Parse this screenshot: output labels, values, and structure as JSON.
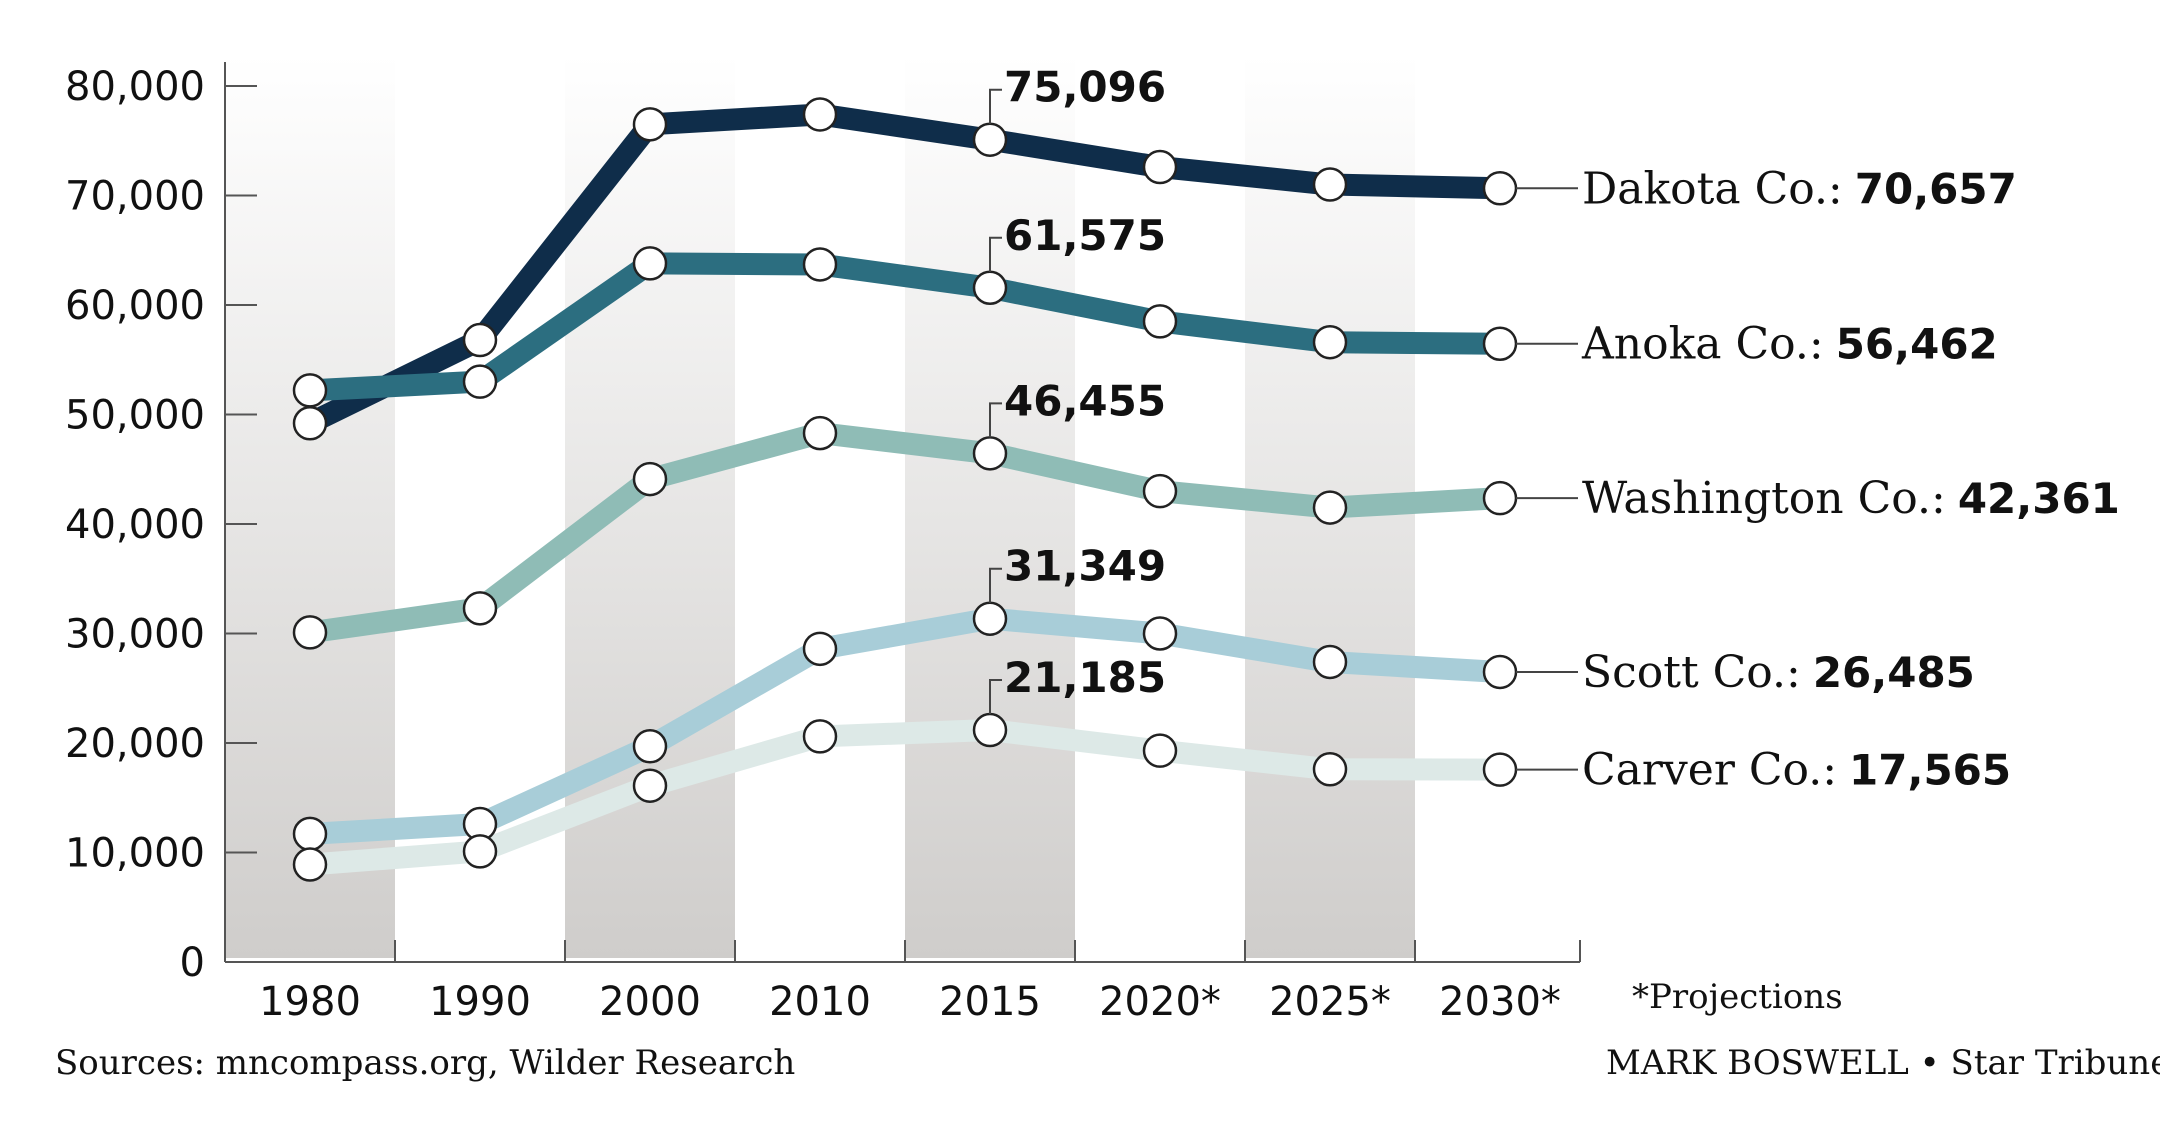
{
  "chart_data": {
    "type": "line",
    "categories": [
      "1980",
      "1990",
      "2000",
      "2010",
      "2015",
      "2020*",
      "2025*",
      "2030*"
    ],
    "ylim": [
      0,
      80000
    ],
    "yticks": [
      "0",
      "10,000",
      "20,000",
      "30,000",
      "40,000",
      "50,000",
      "60,000",
      "70,000",
      "80,000"
    ],
    "ytick_values": [
      0,
      10000,
      20000,
      30000,
      40000,
      50000,
      60000,
      70000,
      80000
    ],
    "series": [
      {
        "name": "Dakota Co.:",
        "end_label": "70,657",
        "callout": "75,096",
        "color": "#0f2d4a",
        "values": [
          49200,
          56800,
          76500,
          77400,
          75096,
          72600,
          71000,
          70657
        ]
      },
      {
        "name": "Anoka Co.:",
        "end_label": "56,462",
        "callout": "61,575",
        "color": "#2c6e80",
        "values": [
          52200,
          53000,
          63800,
          63700,
          61575,
          58500,
          56600,
          56462
        ]
      },
      {
        "name": "Washington Co.:",
        "end_label": "42,361",
        "callout": "46,455",
        "color": "#8fbcb6",
        "values": [
          30100,
          32300,
          44100,
          48300,
          46455,
          43000,
          41500,
          42361
        ]
      },
      {
        "name": "Scott Co.:",
        "end_label": "26,485",
        "callout": "31,349",
        "color": "#a8cdd8",
        "values": [
          11700,
          12600,
          19700,
          28600,
          31349,
          30000,
          27400,
          26485
        ]
      },
      {
        "name": "Carver Co.:",
        "end_label": "17,565",
        "callout": "21,185",
        "color": "#dde9e7",
        "values": [
          8900,
          10100,
          16100,
          20600,
          21185,
          19300,
          17600,
          17565
        ]
      }
    ],
    "grid": false,
    "legend": "none"
  },
  "notes": {
    "projections": "*Projections",
    "sources": "Sources: mncompass.org, Wilder Research",
    "credit": "MARK BOSWELL • Star Tribune"
  }
}
